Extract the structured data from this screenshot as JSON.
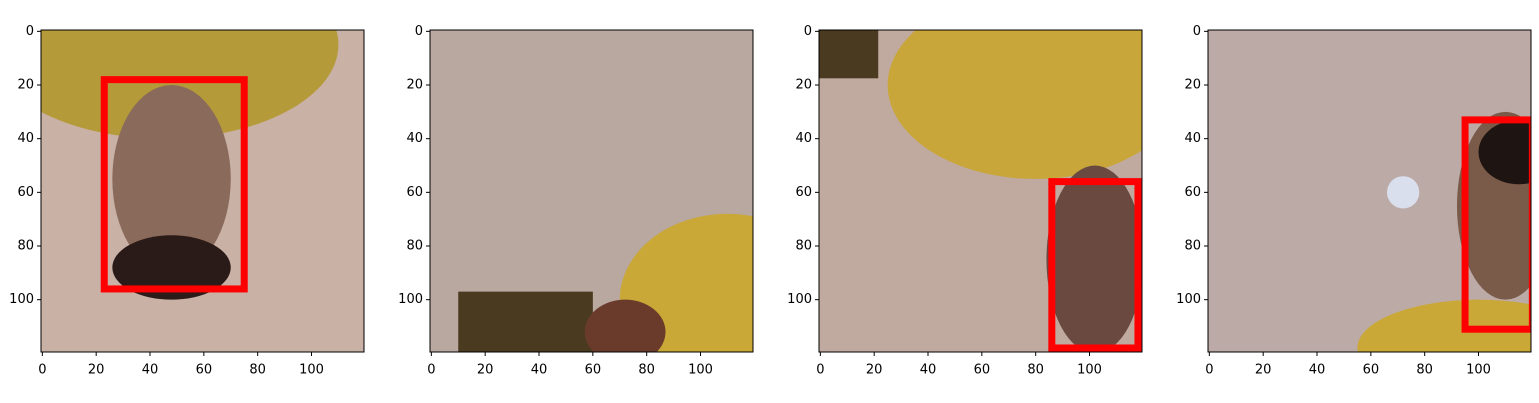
{
  "chart_data": [
    {
      "type": "image",
      "xlim": [
        -0.5,
        119.5
      ],
      "ylim": [
        119.5,
        -0.5
      ],
      "xticks": [
        0,
        20,
        40,
        60,
        80,
        100
      ],
      "yticks": [
        0,
        20,
        40,
        60,
        80,
        100
      ],
      "color": "#ff0000",
      "boxes": [
        {
          "x0": 23,
          "y0": 18,
          "x1": 75,
          "y1": 96
        }
      ]
    },
    {
      "type": "image",
      "xlim": [
        -0.5,
        119.5
      ],
      "ylim": [
        119.5,
        -0.5
      ],
      "xticks": [
        0,
        20,
        40,
        60,
        80,
        100
      ],
      "yticks": [
        0,
        20,
        40,
        60,
        80,
        100
      ],
      "color": "#ff0000",
      "boxes": []
    },
    {
      "type": "image",
      "xlim": [
        -0.5,
        119.5
      ],
      "ylim": [
        119.5,
        -0.5
      ],
      "xticks": [
        0,
        20,
        40,
        60,
        80,
        100
      ],
      "yticks": [
        0,
        20,
        40,
        60,
        80,
        100
      ],
      "color": "#ff0000",
      "boxes": [
        {
          "x0": 86,
          "y0": 56,
          "x1": 118,
          "y1": 118
        }
      ]
    },
    {
      "type": "image",
      "xlim": [
        -0.5,
        119.5
      ],
      "ylim": [
        119.5,
        -0.5
      ],
      "xticks": [
        0,
        20,
        40,
        60,
        80,
        100
      ],
      "yticks": [
        0,
        20,
        40,
        60,
        80,
        100
      ],
      "color": "#ff0000",
      "boxes": [
        {
          "x0": 95,
          "y0": 33,
          "x1": 120,
          "y1": 111
        }
      ]
    }
  ]
}
